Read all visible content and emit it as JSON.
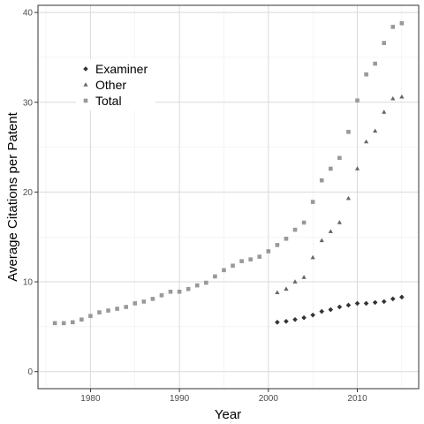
{
  "chart_data": {
    "type": "scatter",
    "xlabel": "Year",
    "ylabel": "Average Citations per Patent",
    "xlim": [
      1974.1,
      2016.9
    ],
    "ylim": [
      -1.9,
      40.8
    ],
    "xticks": [
      1980,
      1990,
      2000,
      2010
    ],
    "yticks": [
      0,
      10,
      20,
      30,
      40
    ],
    "grid": true,
    "legend_position": "top-left",
    "series": [
      {
        "name": "Examiner",
        "marker": "diamond",
        "color": "#333333",
        "x": [
          2001,
          2002,
          2003,
          2004,
          2005,
          2006,
          2007,
          2008,
          2009,
          2010,
          2011,
          2012,
          2013,
          2014,
          2015
        ],
        "y": [
          5.5,
          5.6,
          5.8,
          6.0,
          6.3,
          6.7,
          6.9,
          7.2,
          7.4,
          7.6,
          7.6,
          7.7,
          7.8,
          8.1,
          8.3
        ]
      },
      {
        "name": "Other",
        "marker": "triangle",
        "color": "#666666",
        "x": [
          2001,
          2002,
          2003,
          2004,
          2005,
          2006,
          2007,
          2008,
          2009,
          2010,
          2011,
          2012,
          2013,
          2014,
          2015
        ],
        "y": [
          8.8,
          9.2,
          10.0,
          10.5,
          12.7,
          14.6,
          15.6,
          16.6,
          19.3,
          22.6,
          25.6,
          26.8,
          28.9,
          30.4,
          30.6
        ]
      },
      {
        "name": "Total",
        "marker": "square",
        "color": "#999999",
        "x": [
          1976,
          1977,
          1978,
          1979,
          1980,
          1981,
          1982,
          1983,
          1984,
          1985,
          1986,
          1987,
          1988,
          1989,
          1990,
          1991,
          1992,
          1993,
          1994,
          1995,
          1996,
          1997,
          1998,
          1999,
          2000,
          2001,
          2002,
          2003,
          2004,
          2005,
          2006,
          2007,
          2008,
          2009,
          2010,
          2011,
          2012,
          2013,
          2014,
          2015
        ],
        "y": [
          5.4,
          5.4,
          5.5,
          5.8,
          6.2,
          6.6,
          6.8,
          7.0,
          7.2,
          7.6,
          7.8,
          8.1,
          8.5,
          8.9,
          8.9,
          9.2,
          9.6,
          9.9,
          10.6,
          11.3,
          11.8,
          12.3,
          12.5,
          12.8,
          13.4,
          14.1,
          14.8,
          15.8,
          16.6,
          18.9,
          21.3,
          22.6,
          23.8,
          26.7,
          30.2,
          33.1,
          34.3,
          36.6,
          38.4,
          38.8
        ]
      }
    ]
  }
}
